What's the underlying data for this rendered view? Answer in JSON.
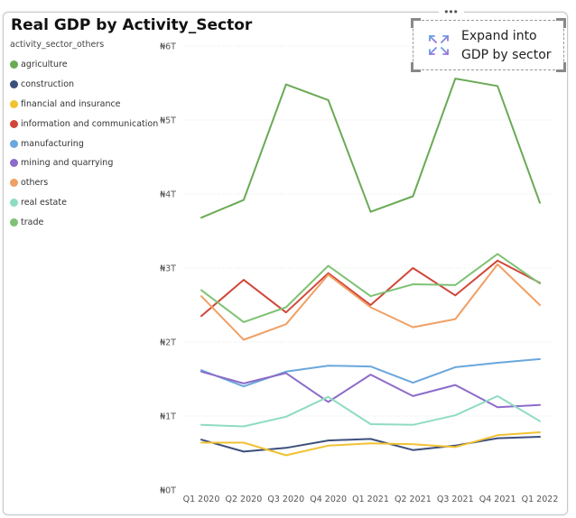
{
  "visual": {
    "title": "Real GDP by Activity_Sector",
    "more_options_glyph": "•••"
  },
  "expand_button": {
    "label": "Expand into GDP by sector",
    "icon": "expand-arrows-icon"
  },
  "chart_data": {
    "type": "line",
    "title": "Real GDP by Activity_Sector",
    "xlabel": "",
    "ylabel": "",
    "legend_title": "activity_sector_others",
    "legend_position": "left",
    "grid": "horizontal",
    "x": [
      "Q1 2020",
      "Q2 2020",
      "Q3 2020",
      "Q4 2020",
      "Q1 2021",
      "Q2 2021",
      "Q3 2021",
      "Q4 2021",
      "Q1 2022"
    ],
    "y_ticks": [
      "₦0T",
      "₦1T",
      "₦2T",
      "₦3T",
      "₦4T",
      "₦5T",
      "₦6T"
    ],
    "ylim": [
      0,
      6
    ],
    "y_unit": "trillion naira",
    "series": [
      {
        "name": "agriculture",
        "color": "#6aaa55",
        "values": [
          3.68,
          3.92,
          5.48,
          5.27,
          3.76,
          3.97,
          5.56,
          5.46,
          3.88
        ]
      },
      {
        "name": "construction",
        "color": "#3d4f7c",
        "values": [
          0.68,
          0.52,
          0.57,
          0.67,
          0.69,
          0.54,
          0.6,
          0.7,
          0.72
        ]
      },
      {
        "name": "financial and insurance",
        "color": "#f1c232",
        "values": [
          0.64,
          0.64,
          0.47,
          0.6,
          0.63,
          0.62,
          0.58,
          0.74,
          0.78
        ]
      },
      {
        "name": "information and communication",
        "color": "#d0473a",
        "values": [
          2.35,
          2.84,
          2.4,
          2.93,
          2.5,
          3.0,
          2.63,
          3.1,
          2.8
        ]
      },
      {
        "name": "manufacturing",
        "color": "#6aa7dc",
        "values": [
          1.62,
          1.4,
          1.6,
          1.68,
          1.67,
          1.45,
          1.66,
          1.72,
          1.77
        ]
      },
      {
        "name": "mining and quarrying",
        "color": "#8b6cc9",
        "values": [
          1.6,
          1.44,
          1.58,
          1.19,
          1.56,
          1.27,
          1.42,
          1.12,
          1.15
        ]
      },
      {
        "name": "others",
        "color": "#f0a065",
        "values": [
          2.62,
          2.03,
          2.24,
          2.91,
          2.47,
          2.2,
          2.31,
          3.05,
          2.5
        ]
      },
      {
        "name": "real estate",
        "color": "#8edcc2",
        "values": [
          0.88,
          0.86,
          0.99,
          1.26,
          0.89,
          0.88,
          1.01,
          1.27,
          0.93
        ]
      },
      {
        "name": "trade",
        "color": "#7fc274",
        "values": [
          2.7,
          2.27,
          2.47,
          3.03,
          2.62,
          2.78,
          2.77,
          3.19,
          2.79
        ]
      }
    ]
  }
}
